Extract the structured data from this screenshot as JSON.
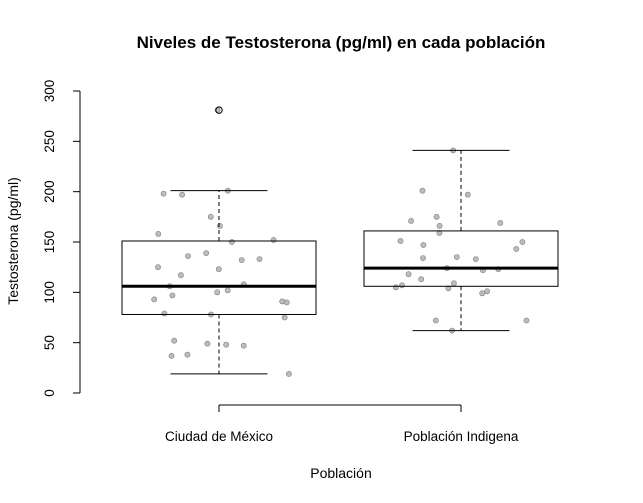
{
  "chart_data": {
    "type": "boxplot",
    "title": "Niveles de Testosterona (pg/ml) en cada población",
    "xlabel": "Población",
    "ylabel": "Testosterona (pg/ml)",
    "ylim": [
      0,
      300
    ],
    "yticks": [
      "0",
      "50",
      "100",
      "150",
      "200",
      "250",
      "300"
    ],
    "categories": [
      "Ciudad de México",
      "Población Indigena"
    ],
    "boxes": [
      {
        "category": "Ciudad de México",
        "whisker_low": 19,
        "q1": 78,
        "median": 106,
        "q3": 151,
        "whisker_high": 201,
        "outliers": [
          281
        ]
      },
      {
        "category": "Población Indigena",
        "whisker_low": 62,
        "q1": 106,
        "median": 124,
        "q3": 161,
        "whisker_high": 241,
        "outliers": []
      }
    ],
    "points": [
      {
        "category": "Ciudad de México",
        "values": [
          281,
          201,
          198,
          197,
          175,
          166,
          158,
          152,
          150,
          139,
          136,
          133,
          132,
          125,
          123,
          117,
          108,
          106,
          102,
          100,
          97,
          93,
          91,
          90,
          79,
          78,
          75,
          52,
          49,
          48,
          47,
          38,
          37,
          19
        ]
      },
      {
        "category": "Población Indigena",
        "values": [
          241,
          201,
          197,
          175,
          171,
          169,
          166,
          159,
          151,
          150,
          147,
          143,
          135,
          134,
          133,
          124,
          123,
          122,
          118,
          113,
          109,
          107,
          105,
          104,
          101,
          99,
          72,
          72,
          62
        ]
      }
    ],
    "grid": false,
    "legend": "none",
    "colors": {
      "points": "#a6a6a6",
      "points_stroke": "#808080",
      "box": "#000000"
    }
  }
}
